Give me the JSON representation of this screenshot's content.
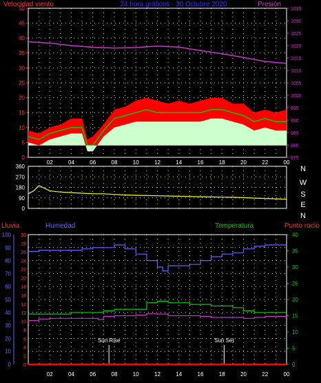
{
  "chart_data": [
    {
      "type": "line",
      "title": "24 hora gráficos  -  30 Octubre 2020",
      "left_axis_label": "Velocidad viento",
      "right_axis_label": "Presión",
      "x_ticks": [
        "02",
        "04",
        "06",
        "08",
        "10",
        "12",
        "14",
        "16",
        "18",
        "20",
        "22",
        "00"
      ],
      "y_left": {
        "ticks": [
          0,
          5,
          10,
          15,
          20,
          25,
          30,
          35,
          40,
          45,
          50
        ],
        "range": [
          0,
          50
        ]
      },
      "y_right": {
        "ticks": [
          975,
          980,
          985,
          990,
          995,
          1000,
          1005,
          1010,
          1015,
          1020,
          1025,
          1030,
          1035
        ],
        "range": [
          975,
          1035
        ]
      },
      "series": [
        {
          "name": "Presión",
          "color": "#cc33cc",
          "axis": "right",
          "x": [
            0,
            2,
            4,
            6,
            8,
            10,
            12,
            14,
            16,
            18,
            20,
            22,
            24
          ],
          "y": [
            1021.5,
            1021.0,
            1020.0,
            1019.3,
            1019.0,
            1019.2,
            1019.8,
            1019.4,
            1018.0,
            1016.7,
            1015.2,
            1013.6,
            1012.8
          ]
        },
        {
          "color": "#ff0000",
          "axis": "left",
          "kind": "area",
          "x": [
            0,
            1,
            2,
            3,
            4,
            5,
            5.5,
            6,
            7,
            8,
            9,
            10,
            11,
            12,
            13,
            14,
            15,
            16,
            17,
            18,
            19,
            20,
            21,
            22,
            23,
            24
          ],
          "y": [
            9,
            8,
            10,
            11,
            13,
            13,
            6,
            7,
            11,
            16,
            17,
            19,
            20,
            19,
            18,
            19,
            18,
            19,
            20,
            20,
            18,
            18,
            15,
            16,
            15,
            16
          ]
        },
        {
          "color": "#00cc00",
          "axis": "left",
          "x": [
            0,
            1,
            2,
            3,
            4,
            5,
            5.5,
            6,
            7,
            8,
            9,
            10,
            11,
            12,
            13,
            14,
            15,
            16,
            17,
            18,
            19,
            20,
            21,
            22,
            23,
            24
          ],
          "y": [
            7,
            6,
            8,
            9,
            10,
            10,
            4,
            4,
            9,
            13,
            14,
            15,
            16,
            15,
            15,
            15,
            15,
            15,
            16,
            16,
            15,
            14,
            12,
            13,
            12,
            12
          ]
        },
        {
          "color": "#ccffcc",
          "axis": "left",
          "kind": "area",
          "x": [
            0,
            1,
            2,
            3,
            4,
            5,
            5.5,
            6,
            7,
            8,
            9,
            10,
            11,
            12,
            13,
            14,
            15,
            16,
            17,
            18,
            19,
            20,
            21,
            22,
            23,
            24
          ],
          "y": [
            5,
            4,
            6,
            7,
            8,
            8,
            2,
            2,
            7,
            10,
            11,
            12,
            12,
            12,
            12,
            12,
            12,
            12,
            13,
            13,
            12,
            11,
            9,
            10,
            9,
            9
          ]
        }
      ]
    },
    {
      "type": "line",
      "y_left": {
        "ticks": [
          0,
          45,
          90,
          135,
          180,
          225,
          270,
          315,
          360
        ],
        "range": [
          0,
          360
        ]
      },
      "compass": [
        "N",
        "W",
        "S",
        "E",
        "N"
      ],
      "series": [
        {
          "color": "#ffff00",
          "x": [
            0,
            0.5,
            1,
            2,
            3,
            4,
            5,
            6,
            7,
            8,
            9,
            10,
            11,
            12,
            13,
            14,
            15,
            16,
            17,
            18,
            19,
            20,
            21,
            22,
            23,
            24
          ],
          "y": [
            125,
            150,
            195,
            150,
            140,
            135,
            130,
            125,
            125,
            120,
            115,
            112,
            110,
            108,
            106,
            104,
            102,
            100,
            98,
            96,
            95,
            92,
            88,
            85,
            82,
            78
          ]
        }
      ]
    },
    {
      "type": "line",
      "left_labels": [
        "Lluvia",
        "Humedad"
      ],
      "right_labels": [
        "Temperatura",
        "Punto rocío"
      ],
      "x_ticks": [
        "02",
        "04",
        "06",
        "08",
        "10",
        "12",
        "14",
        "16",
        "18",
        "20",
        "22",
        "00"
      ],
      "y_humidity": {
        "ticks": [
          0,
          10,
          20,
          30,
          40,
          50,
          60,
          70,
          80,
          90,
          100
        ],
        "range": [
          0,
          100
        ]
      },
      "y_rain": {
        "ticks": [
          0,
          2,
          4,
          6,
          8,
          10,
          12,
          14,
          16,
          18,
          20,
          22,
          24,
          26,
          28,
          30
        ],
        "range": [
          0,
          30
        ]
      },
      "y_temp": {
        "ticks": [
          0,
          5,
          10,
          15,
          20,
          25,
          30,
          35,
          40
        ],
        "range": [
          0,
          40
        ]
      },
      "annotations": [
        {
          "label": "Sun Rise",
          "x": 7.5
        },
        {
          "label": "Sun Set",
          "x": 18.2
        }
      ],
      "series": [
        {
          "name": "Humedad",
          "color": "#6666ff",
          "axis": "humidity",
          "x": [
            0,
            1,
            2,
            3,
            4,
            5,
            6,
            7,
            8,
            9,
            10,
            11,
            12,
            12.5,
            13,
            14,
            15,
            16,
            17,
            18,
            19,
            20,
            21,
            22,
            23,
            24
          ],
          "y": [
            87,
            88,
            88,
            88,
            88,
            89,
            90,
            90,
            92,
            89,
            85,
            80,
            75,
            72,
            76,
            76,
            77,
            80,
            83,
            85,
            86,
            89,
            91,
            92,
            92,
            92
          ]
        },
        {
          "name": "Lluvia",
          "color": "#ff0000",
          "axis": "rain",
          "x": [
            0,
            24
          ],
          "y": [
            0,
            0
          ]
        },
        {
          "name": "Temperatura",
          "color": "#00cc00",
          "axis": "temp",
          "x": [
            0,
            2,
            4,
            6,
            7,
            8,
            9,
            10,
            11,
            12,
            13,
            14,
            15,
            16,
            17,
            18,
            19,
            20,
            21,
            22,
            23,
            24
          ],
          "y": [
            15.5,
            15.5,
            16,
            16,
            16.5,
            17,
            17,
            17,
            19,
            19.5,
            19,
            19,
            18.5,
            18.5,
            18,
            18,
            17.5,
            16.5,
            16,
            16,
            16,
            16
          ]
        },
        {
          "name": "Punto rocío",
          "color": "#cc33cc",
          "axis": "temp",
          "x": [
            0,
            1,
            2,
            4,
            6,
            6.5,
            7,
            8,
            9,
            10,
            11,
            12,
            13,
            14,
            15,
            16,
            17,
            18,
            19,
            20,
            21,
            22,
            23,
            24
          ],
          "y": [
            13.5,
            14,
            14.2,
            14.2,
            14.2,
            13.8,
            14.8,
            15,
            15,
            15.2,
            15.6,
            15.5,
            15,
            15,
            15,
            14.8,
            14.5,
            14.5,
            14.5,
            14.2,
            14.5,
            14.8,
            14.8,
            14.8
          ]
        }
      ]
    }
  ]
}
